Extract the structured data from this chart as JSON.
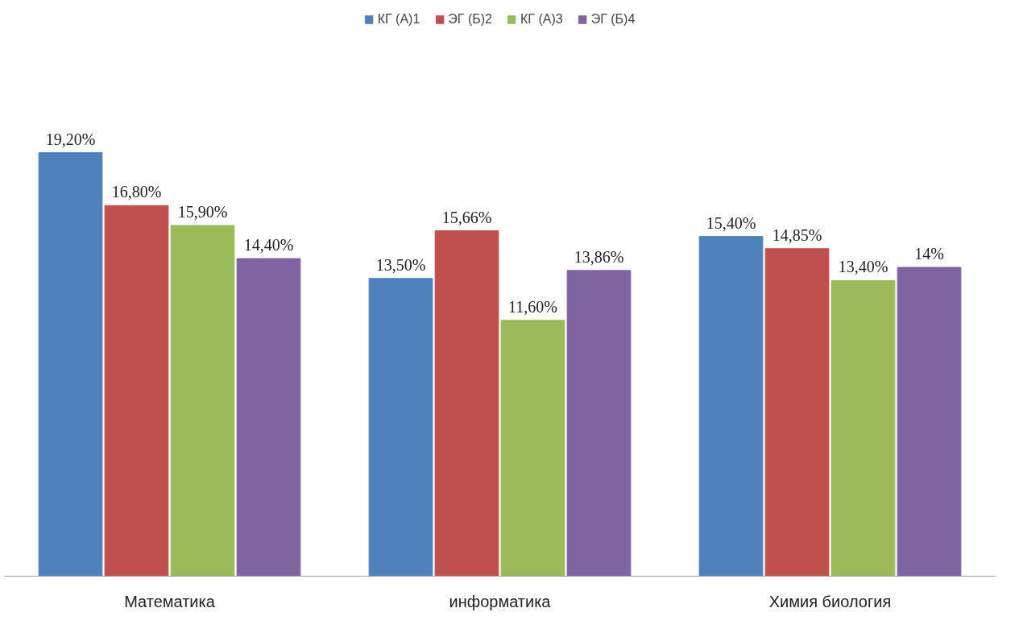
{
  "chart_data": {
    "type": "bar",
    "categories": [
      "Математика",
      "информатика",
      "Химия биология"
    ],
    "series": [
      {
        "name": "КГ (А)1",
        "color": "#4f81bd",
        "values": [
          19.2,
          13.5,
          15.4
        ],
        "value_labels": [
          "19,20%",
          "13,50%",
          "15,40%"
        ]
      },
      {
        "name": "ЭГ (Б)2",
        "color": "#c0504d",
        "values": [
          16.8,
          15.66,
          14.85
        ],
        "value_labels": [
          "16,80%",
          "15,66%",
          "14,85%"
        ]
      },
      {
        "name": "КГ (А)3",
        "color": "#9bbb59",
        "values": [
          15.9,
          11.6,
          13.4
        ],
        "value_labels": [
          "15,90%",
          "11,60%",
          "13,40%"
        ]
      },
      {
        "name": "ЭГ (Б)4",
        "color": "#8064a2",
        "values": [
          14.4,
          13.86,
          14
        ],
        "value_labels": [
          "14,40%",
          "13,86%",
          "14%"
        ]
      }
    ],
    "legend": "top",
    "grid": false
  }
}
